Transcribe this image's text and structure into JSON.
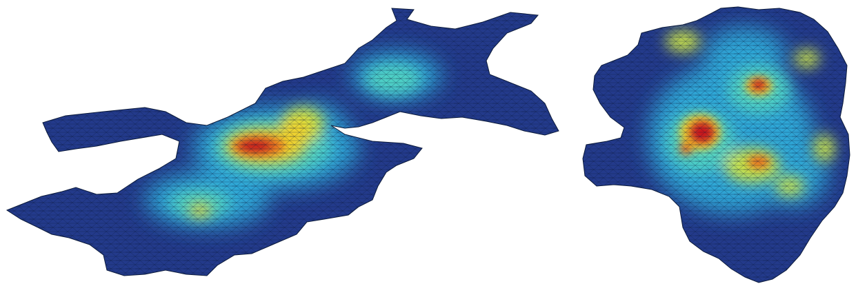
{
  "figure": {
    "panels": [
      {
        "id": "left",
        "name": "elongated-region-heatmap",
        "colormap": [
          "#22327f",
          "#2a5bb8",
          "#2fa6d6",
          "#4fd1c5",
          "#c9e24a",
          "#f2d22a",
          "#e8721c",
          "#c8161c"
        ],
        "mesh_color": "#0b1a3a",
        "peak_color": "#c8161c",
        "base_color": "#233a8b"
      },
      {
        "id": "right",
        "name": "compact-region-heatmap",
        "colormap": [
          "#22327f",
          "#2a5bb8",
          "#2fa6d6",
          "#4fd1c5",
          "#c9e24a",
          "#f2d22a",
          "#e8721c",
          "#c8161c"
        ],
        "mesh_color": "#0b1a3a",
        "peak_color": "#c8161c",
        "base_color": "#233a8b"
      }
    ]
  }
}
